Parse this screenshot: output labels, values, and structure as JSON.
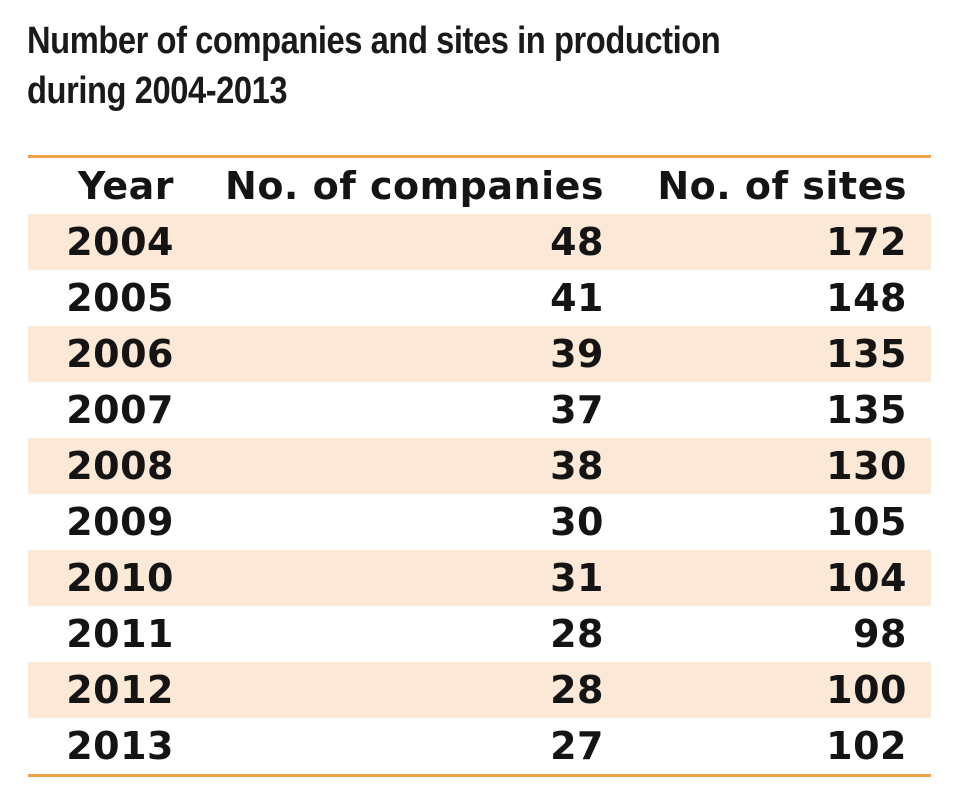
{
  "title": "Number of companies and sites in production during 2004-2013",
  "accent_color": "#f0a24a",
  "stripe_color": "#fbe8d6",
  "chart_data": {
    "type": "table",
    "title": "Number of companies and sites in production during 2004-2013",
    "columns": [
      "Year",
      "No. of companies",
      "No. of sites"
    ],
    "rows": [
      {
        "year": "2004",
        "companies": "48",
        "sites": "172"
      },
      {
        "year": "2005",
        "companies": "41",
        "sites": "148"
      },
      {
        "year": "2006",
        "companies": "39",
        "sites": "135"
      },
      {
        "year": "2007",
        "companies": "37",
        "sites": "135"
      },
      {
        "year": "2008",
        "companies": "38",
        "sites": "130"
      },
      {
        "year": "2009",
        "companies": "30",
        "sites": "105"
      },
      {
        "year": "2010",
        "companies": "31",
        "sites": "104"
      },
      {
        "year": "2011",
        "companies": "28",
        "sites": "98"
      },
      {
        "year": "2012",
        "companies": "28",
        "sites": "100"
      },
      {
        "year": "2013",
        "companies": "27",
        "sites": "102"
      }
    ]
  }
}
